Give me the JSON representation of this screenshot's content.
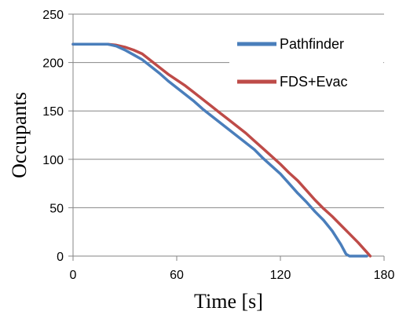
{
  "chart_data": {
    "type": "line",
    "xlabel": "Time [s]",
    "ylabel": "Occupants",
    "xlim": [
      0,
      180
    ],
    "ylim": [
      0,
      250
    ],
    "xticks": [
      "0",
      "60",
      "120",
      "180"
    ],
    "yticks": [
      "0",
      "50",
      "100",
      "150",
      "200",
      "250"
    ],
    "grid": "horizontal",
    "legend_position": "top-right",
    "series": [
      {
        "name": "Pathfinder",
        "color": "#4a7ebb",
        "x": [
          0,
          20,
          25,
          30,
          35,
          40,
          45,
          50,
          55,
          60,
          65,
          70,
          75,
          80,
          85,
          90,
          95,
          100,
          105,
          110,
          115,
          120,
          125,
          130,
          135,
          140,
          145,
          150,
          155,
          158,
          160,
          170
        ],
        "y": [
          219,
          219,
          217,
          213,
          208,
          203,
          196,
          189,
          181,
          174,
          167,
          160,
          152,
          145,
          138,
          131,
          124,
          117,
          110,
          101,
          93,
          85,
          75,
          65,
          56,
          46,
          37,
          26,
          12,
          2,
          0,
          0
        ]
      },
      {
        "name": "FDS+Evac",
        "color": "#be4b48",
        "x": [
          0,
          20,
          25,
          30,
          35,
          40,
          45,
          50,
          55,
          60,
          65,
          70,
          75,
          80,
          85,
          90,
          95,
          100,
          105,
          110,
          115,
          120,
          125,
          130,
          135,
          140,
          145,
          150,
          155,
          160,
          165,
          170,
          172
        ],
        "y": [
          219,
          219,
          218,
          216,
          213,
          209,
          202,
          195,
          188,
          182,
          176,
          169,
          162,
          155,
          148,
          141,
          134,
          127,
          119,
          111,
          103,
          95,
          86,
          78,
          68,
          58,
          49,
          41,
          32,
          23,
          14,
          4,
          0
        ]
      }
    ]
  }
}
